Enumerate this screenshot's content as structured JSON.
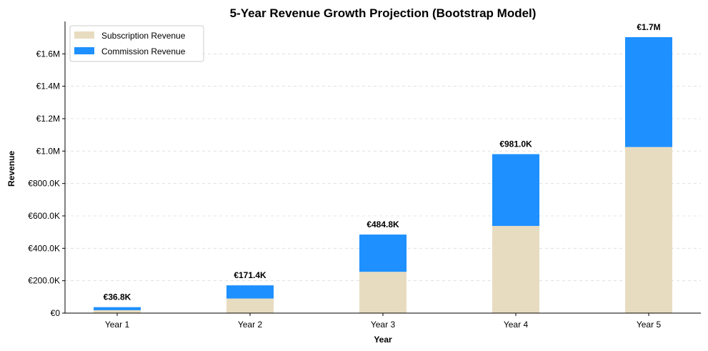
{
  "chart_data": {
    "type": "bar",
    "stacked": true,
    "title": "5-Year Revenue Growth Projection (Bootstrap Model)",
    "xlabel": "Year",
    "ylabel": "Revenue",
    "categories": [
      "Year 1",
      "Year 2",
      "Year 3",
      "Year 4",
      "Year 5"
    ],
    "series": [
      {
        "name": "Subscription Revenue",
        "color": "#e8dcc0",
        "values": [
          18000,
          90000,
          255000,
          538000,
          1025000
        ]
      },
      {
        "name": "Commission Revenue",
        "color": "#1e90ff",
        "values": [
          18800,
          81400,
          229800,
          443000,
          678000
        ]
      }
    ],
    "totals": [
      36800,
      171400,
      484800,
      981000,
      1703000
    ],
    "total_labels": [
      "€36.8K",
      "€171.4K",
      "€484.8K",
      "€981.0K",
      "€1.7M"
    ],
    "ylim": [
      0,
      1800000
    ],
    "yticks": [
      0,
      200000,
      400000,
      600000,
      800000,
      1000000,
      1200000,
      1400000,
      1600000
    ],
    "ytick_labels": [
      "€0",
      "€200.0K",
      "€400.0K",
      "€600.0K",
      "€800.0K",
      "€1.0M",
      "€1.2M",
      "€1.4M",
      "€1.6M"
    ],
    "grid": "y-dashed",
    "legend": "top-left"
  }
}
